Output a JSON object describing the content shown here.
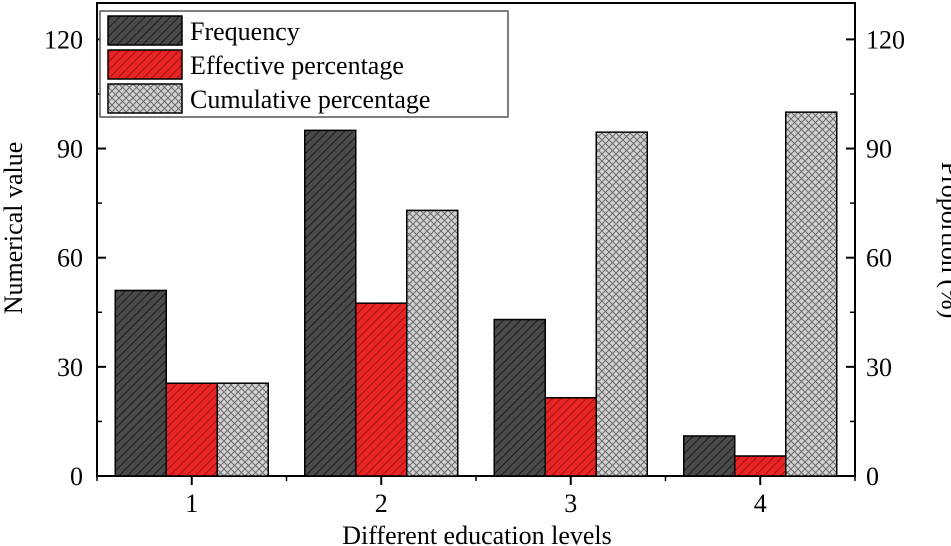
{
  "chart_data": {
    "type": "bar",
    "categories": [
      "1",
      "2",
      "3",
      "4"
    ],
    "series": [
      {
        "name": "Frequency",
        "axis": "left",
        "values": [
          51,
          95,
          43,
          11
        ],
        "color": "#3d3d3d",
        "pattern": "diagonal-hatch"
      },
      {
        "name": "Effective percentage",
        "axis": "right",
        "values": [
          25.5,
          47.5,
          21.5,
          5.5
        ],
        "color": "#e01b1b",
        "pattern": "diagonal-hatch"
      },
      {
        "name": "Cumulative percentage",
        "axis": "right",
        "values": [
          25.5,
          73,
          94.5,
          100
        ],
        "color": "#c4c4c4",
        "pattern": "crosshatch"
      }
    ],
    "xlabel": "Different education levels",
    "ylabel": "Numerical value",
    "y2label": "Proportion (%)",
    "ylim": [
      0,
      130
    ],
    "y2lim": [
      0,
      130
    ],
    "yticks": [
      "0",
      "30",
      "60",
      "90",
      "120"
    ],
    "y2ticks": [
      "0",
      "30",
      "60",
      "90",
      "120"
    ],
    "legend": "top-left",
    "grid": false
  }
}
